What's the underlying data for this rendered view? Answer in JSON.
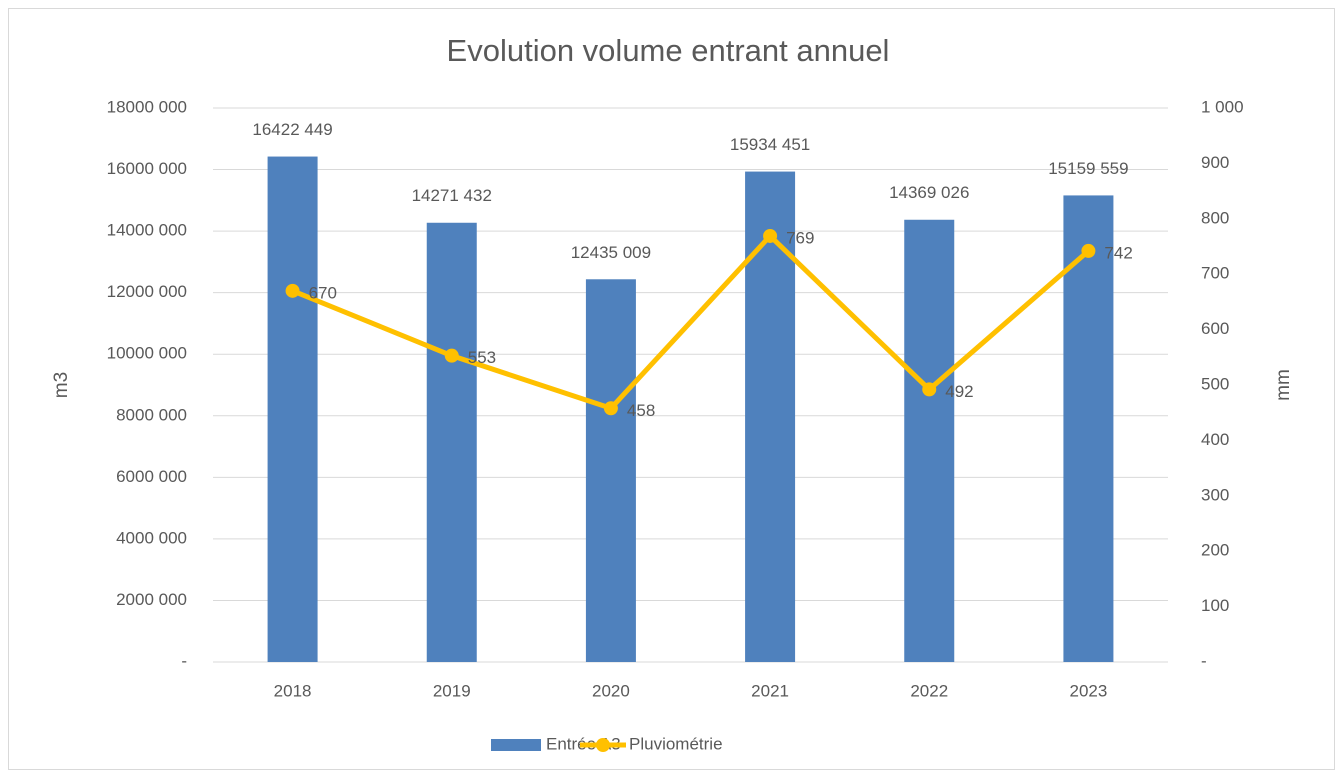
{
  "chart_data": {
    "type": "bar",
    "title": "Evolution volume entrant annuel",
    "y_label": "m3",
    "y2_label": "mm",
    "categories": [
      "2018",
      "2019",
      "2020",
      "2021",
      "2022",
      "2023"
    ],
    "series": [
      {
        "name": "Entrée A3",
        "type": "bar",
        "color": "#4f81bd",
        "values": [
          16422449,
          14271432,
          12435009,
          15934451,
          14369026,
          15159559
        ],
        "value_labels": [
          "16422 449",
          "14271 432",
          "12435 009",
          "15934 451",
          "14369 026",
          "15159 559"
        ]
      },
      {
        "name": "Pluviométrie",
        "type": "line",
        "axis": "y2",
        "color": "#ffc000",
        "values": [
          670,
          553,
          458,
          769,
          492,
          742
        ]
      }
    ],
    "ylim": [
      0,
      18000000
    ],
    "yticks": [
      {
        "value": 0,
        "label": "-"
      },
      {
        "value": 2000000,
        "label": "2000 000"
      },
      {
        "value": 4000000,
        "label": "4000 000"
      },
      {
        "value": 6000000,
        "label": "6000 000"
      },
      {
        "value": 8000000,
        "label": "8000 000"
      },
      {
        "value": 10000000,
        "label": "10000 000"
      },
      {
        "value": 12000000,
        "label": "12000 000"
      },
      {
        "value": 14000000,
        "label": "14000 000"
      },
      {
        "value": 16000000,
        "label": "16000 000"
      },
      {
        "value": 18000000,
        "label": "18000 000"
      }
    ],
    "y2lim": [
      0,
      1000
    ],
    "y2ticks": [
      {
        "value": 0,
        "label": "-"
      },
      100,
      200,
      300,
      400,
      500,
      600,
      700,
      800,
      900,
      {
        "value": 1000,
        "label": "1 000"
      }
    ],
    "grid": true,
    "legend": "bottom"
  }
}
